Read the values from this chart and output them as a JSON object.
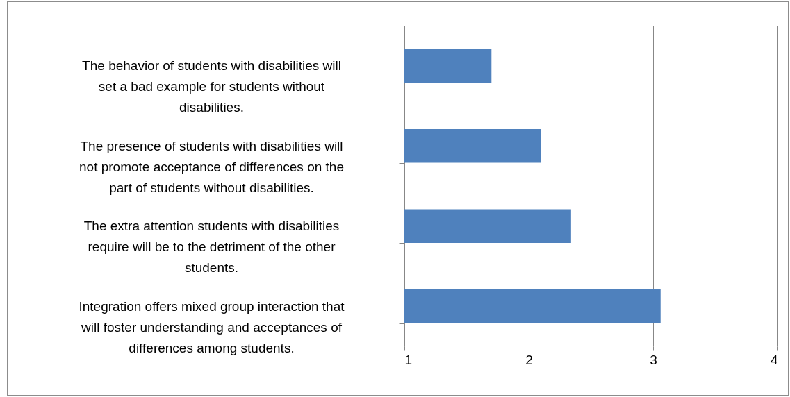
{
  "chart_data": {
    "type": "bar",
    "orientation": "horizontal",
    "categories": [
      "The behavior of  students with disabilities will set a bad example for students without disabilities.",
      "The presence of students with disabilities will not promote acceptance of differences on the part of students without disabilities.",
      "The extra attention students with disabilities require will be to the detriment of the other students.",
      "Integration offers mixed group interaction that will  foster understanding and acceptances of differences among students."
    ],
    "values": [
      1.7,
      2.1,
      2.34,
      3.06
    ],
    "color": "#4f81bd",
    "xlim": [
      1,
      4
    ],
    "xticks": [
      1,
      2,
      3,
      4
    ],
    "grid": "x"
  }
}
